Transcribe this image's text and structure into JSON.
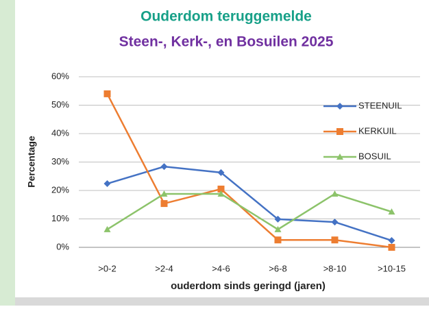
{
  "chart_data": {
    "type": "line",
    "title": "Ouderdom teruggemelde",
    "subtitle": "Steen-, Kerk-, en Bosuilen 2025",
    "y_label": "Percentage",
    "x_label": "ouderdom sinds geringd (jaren)",
    "categories": [
      ">0-2",
      ">2-4",
      ">4-6",
      ">6-8",
      ">8-10",
      ">10-15"
    ],
    "series": [
      {
        "name": "STEENUIL",
        "color": "#4472c4",
        "marker": "diamond",
        "values": [
          22.4,
          28.4,
          26.3,
          9.9,
          8.9,
          2.4
        ]
      },
      {
        "name": "KERKUIL",
        "color": "#ed7d31",
        "marker": "square",
        "values": [
          54,
          15.4,
          20.5,
          2.6,
          2.6,
          0
        ]
      },
      {
        "name": "BOSUIL",
        "color": "#8cc36a",
        "marker": "triangle",
        "values": [
          6.3,
          18.8,
          18.8,
          6.3,
          18.8,
          12.5
        ]
      }
    ],
    "ylim": [
      0,
      60
    ],
    "yticks": [
      {
        "value": 0,
        "label": "0%"
      },
      {
        "value": 10,
        "label": "10%"
      },
      {
        "value": 20,
        "label": "20%"
      },
      {
        "value": 30,
        "label": "30%"
      },
      {
        "value": 40,
        "label": "40%"
      },
      {
        "value": 50,
        "label": "50%"
      },
      {
        "value": 60,
        "label": "60%"
      }
    ],
    "grid": true,
    "legend": "right"
  }
}
